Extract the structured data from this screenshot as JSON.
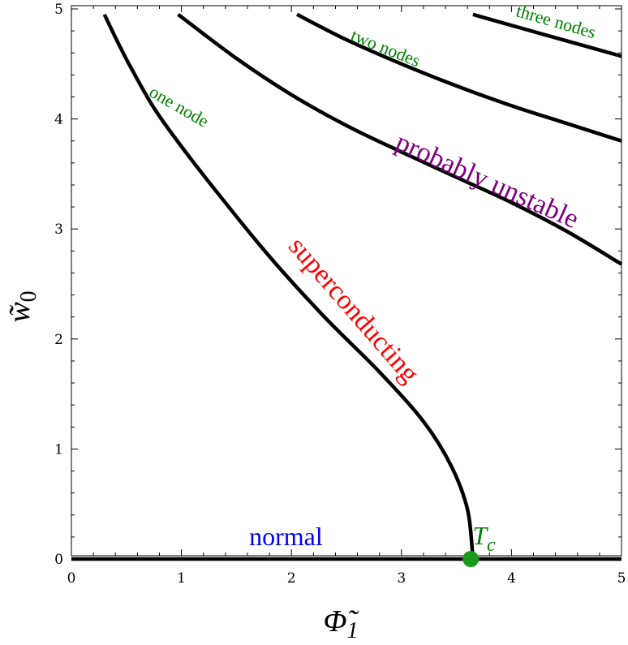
{
  "chart_data": {
    "type": "line",
    "title": "",
    "xlabel": "Φ̃",
    "xlabel_sub": "1",
    "ylabel": "w̃",
    "ylabel_sub": "0",
    "xlim": [
      0,
      5
    ],
    "ylim": [
      0,
      5
    ],
    "xticks": [
      "0",
      "1",
      "2",
      "3",
      "4",
      "5"
    ],
    "yticks": [
      "0",
      "1",
      "2",
      "3",
      "4",
      "5"
    ],
    "grid": false,
    "colors": {
      "curve": "#000000",
      "normal": "#0000ff",
      "superconducting": "#ff0000",
      "nodes": "#008000",
      "unstable": "#800080",
      "tc_point": "#1a9a1a"
    },
    "series": [
      {
        "id": "normal-line",
        "x": [
          0,
          5
        ],
        "y": [
          0,
          0
        ]
      },
      {
        "id": "superconducting-curve",
        "x": [
          3.65,
          3.6,
          3.45,
          3.2,
          2.8,
          2.3,
          1.8,
          1.35,
          1.0,
          0.75,
          0.55,
          0.42,
          0.3
        ],
        "y": [
          0.0,
          0.45,
          0.85,
          1.25,
          1.7,
          2.2,
          2.75,
          3.3,
          3.75,
          4.1,
          4.45,
          4.7,
          4.95
        ]
      },
      {
        "id": "one-node-curve",
        "x": [
          0.97,
          1.5,
          2.0,
          2.5,
          3.0,
          3.5,
          4.0,
          4.5,
          5.0
        ],
        "y": [
          4.95,
          4.55,
          4.22,
          3.94,
          3.7,
          3.47,
          3.24,
          2.98,
          2.68
        ]
      },
      {
        "id": "two-nodes-curve",
        "x": [
          2.05,
          2.5,
          3.0,
          3.5,
          4.0,
          4.5,
          5.0
        ],
        "y": [
          4.95,
          4.72,
          4.5,
          4.3,
          4.12,
          3.96,
          3.8
        ]
      },
      {
        "id": "three-nodes-curve",
        "x": [
          3.65,
          4.0,
          4.5,
          5.0
        ],
        "y": [
          4.95,
          4.85,
          4.71,
          4.57
        ]
      }
    ],
    "points": [
      {
        "id": "tc-point",
        "label": "T",
        "label_sub": "c",
        "x": 3.63,
        "y": 0
      }
    ],
    "annotations": [
      {
        "id": "normal",
        "text": "normal",
        "x": 1.95,
        "y": 0.18,
        "angle": 0,
        "size": 32,
        "color_key": "normal"
      },
      {
        "id": "superconducting",
        "text": "superconducting",
        "x": 2.55,
        "y": 2.25,
        "angle": 49,
        "size": 34,
        "color_key": "superconducting"
      },
      {
        "id": "one-node",
        "text": "one node",
        "x": 0.97,
        "y": 4.1,
        "angle": 30,
        "size": 22,
        "color_key": "nodes"
      },
      {
        "id": "two-nodes",
        "text": "two nodes",
        "x": 2.85,
        "y": 4.63,
        "angle": 22,
        "size": 22,
        "color_key": "nodes"
      },
      {
        "id": "three-nodes",
        "text": "three nodes",
        "x": 4.4,
        "y": 4.87,
        "angle": 16,
        "size": 22,
        "color_key": "nodes"
      },
      {
        "id": "probably-unstable",
        "text": "probably unstable",
        "x": 3.77,
        "y": 3.42,
        "angle": 24,
        "size": 34,
        "color_key": "unstable"
      }
    ]
  }
}
